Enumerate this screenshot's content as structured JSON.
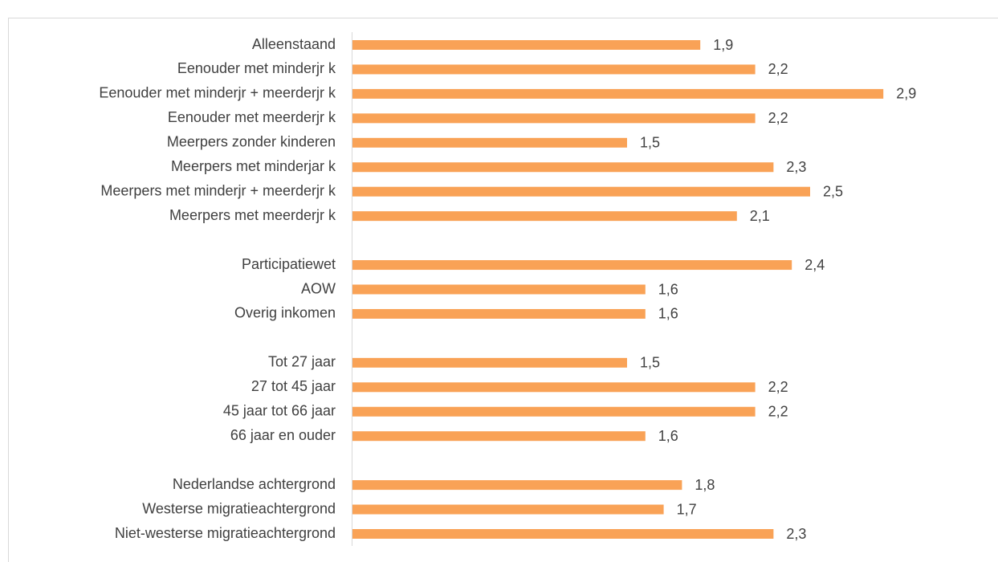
{
  "chart_data": {
    "type": "hbar",
    "categories": [
      "Alleenstaand",
      "Eenouder met minderjr k",
      "Eenouder met minderjr + meerderjr k",
      "Eenouder met meerderjr k",
      "Meerpers zonder kinderen",
      "Meerpers met minderjar k",
      "Meerpers met minderjr + meerderjr k",
      "Meerpers met meerderjr k",
      null,
      "Participatiewet",
      "AOW",
      "Overig inkomen",
      null,
      "Tot 27 jaar",
      "27 tot 45 jaar",
      "45 jaar tot 66 jaar",
      "66 jaar en ouder",
      null,
      "Nederlandse achtergrond",
      "Westerse migratieachtergrond",
      "Niet-westerse migratieachtergrond"
    ],
    "values": [
      1.9,
      2.2,
      2.9,
      2.2,
      1.5,
      2.3,
      2.5,
      2.1,
      null,
      2.4,
      1.6,
      1.6,
      null,
      1.5,
      2.2,
      2.2,
      1.6,
      null,
      1.8,
      1.7,
      2.3
    ],
    "value_labels": [
      "1,9",
      "2,2",
      "2,9",
      "2,2",
      "1,5",
      "2,3",
      "2,5",
      "2,1",
      null,
      "2,4",
      "1,6",
      "1,6",
      null,
      "1,5",
      "2,2",
      "2,2",
      "1,6",
      null,
      "1,8",
      "1,7",
      "2,3"
    ],
    "color": "#f9a256",
    "xlim": [
      0,
      3.5
    ]
  }
}
